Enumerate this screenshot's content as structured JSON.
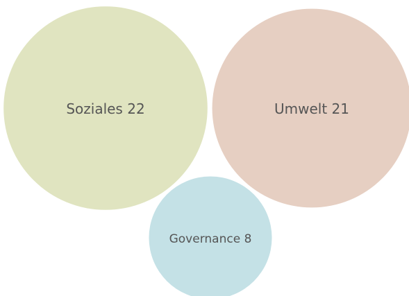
{
  "chart_data": {
    "type": "bubble",
    "categories": [
      "Soziales",
      "Umwelt",
      "Governance"
    ],
    "values": [
      22,
      21,
      8
    ],
    "colors": [
      "#e0e4c0",
      "#e6cfc2",
      "#c4e1e6"
    ]
  }
}
